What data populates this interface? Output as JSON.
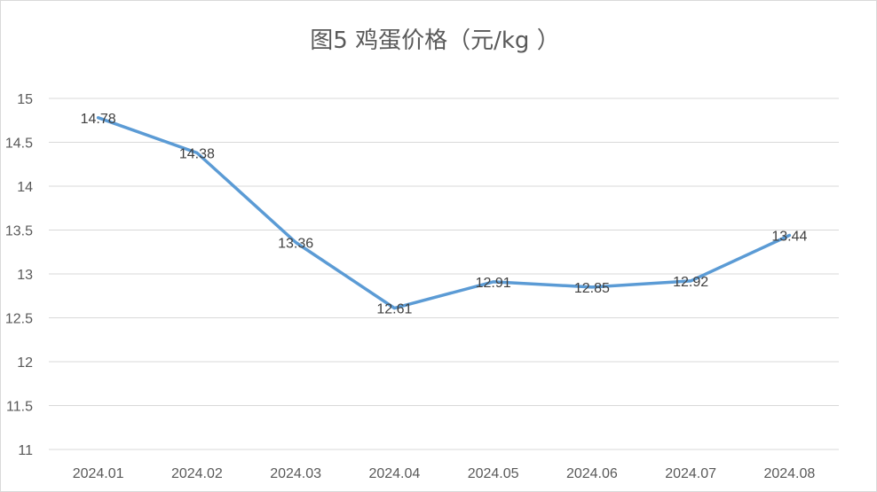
{
  "chart_data": {
    "type": "line",
    "title": "图5  鸡蛋价格（元/kg ）",
    "categories": [
      "2024.01",
      "2024.02",
      "2024.03",
      "2024.04",
      "2024.05",
      "2024.06",
      "2024.07",
      "2024.08"
    ],
    "series": [
      {
        "values": [
          14.78,
          14.38,
          13.36,
          12.61,
          12.91,
          12.85,
          12.92,
          13.44
        ],
        "labels": [
          "14.78",
          "14.38",
          "13.36",
          "12.61",
          "12.91",
          "12.85",
          "12.92",
          "13.44"
        ],
        "color": "#5b9bd5"
      }
    ],
    "ylim": [
      11,
      15
    ],
    "yticks": [
      "11",
      "11.5",
      "12",
      "12.5",
      "13",
      "13.5",
      "14",
      "14.5",
      "15"
    ],
    "grid": true,
    "legend": "none",
    "gridColor": "#d9d9d9"
  }
}
